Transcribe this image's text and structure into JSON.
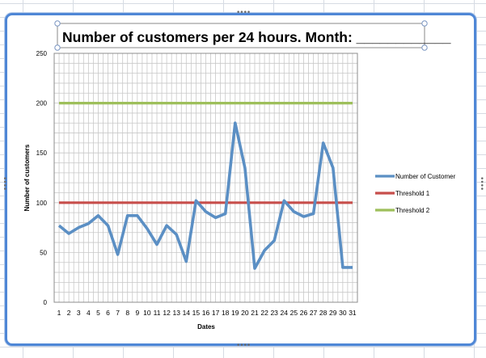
{
  "chart_data": {
    "type": "line",
    "title": "Number of customers per 24 hours. Month: ____________",
    "xlabel": "Dates",
    "ylabel": "Number of customers",
    "ylim": [
      0,
      250
    ],
    "y_ticks": [
      "0",
      "50",
      "100",
      "150",
      "200",
      "250"
    ],
    "categories": [
      "1",
      "2",
      "3",
      "4",
      "5",
      "6",
      "7",
      "8",
      "9",
      "10",
      "11",
      "12",
      "13",
      "14",
      "15",
      "16",
      "17",
      "18",
      "19",
      "20",
      "21",
      "22",
      "23",
      "24",
      "25",
      "26",
      "27",
      "28",
      "29",
      "30",
      "31"
    ],
    "grid": true,
    "legend_position": "right",
    "series": [
      {
        "name": "Number of Customer",
        "color": "#5b8fc4",
        "values": [
          77,
          69,
          75,
          79,
          87,
          77,
          48,
          87,
          87,
          74,
          58,
          77,
          68,
          41,
          102,
          91,
          85,
          89,
          180,
          135,
          34,
          52,
          62,
          102,
          91,
          86,
          89,
          160,
          135,
          35,
          35
        ]
      },
      {
        "name": "Threshold 1",
        "color": "#c74e4b",
        "values": [
          100,
          100,
          100,
          100,
          100,
          100,
          100,
          100,
          100,
          100,
          100,
          100,
          100,
          100,
          100,
          100,
          100,
          100,
          100,
          100,
          100,
          100,
          100,
          100,
          100,
          100,
          100,
          100,
          100,
          100,
          100
        ]
      },
      {
        "name": "Threshold 2",
        "color": "#9ebf5b",
        "values": [
          200,
          200,
          200,
          200,
          200,
          200,
          200,
          200,
          200,
          200,
          200,
          200,
          200,
          200,
          200,
          200,
          200,
          200,
          200,
          200,
          200,
          200,
          200,
          200,
          200,
          200,
          200,
          200,
          200,
          200,
          200
        ]
      }
    ]
  }
}
